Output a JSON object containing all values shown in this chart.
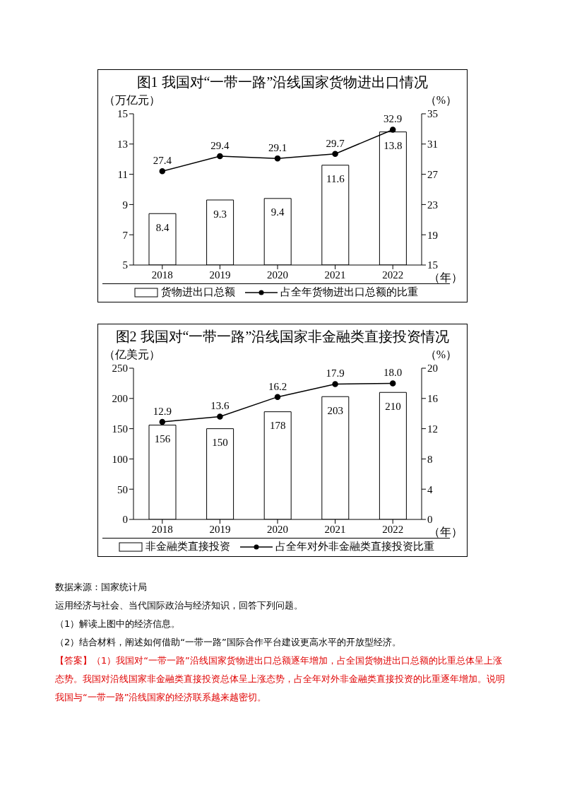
{
  "chart_data": [
    {
      "type": "bar",
      "title": "图1 我国对“一带一路”沿线国家货物进出口情况",
      "ylabel": "（万亿元）",
      "y2label": "（%）",
      "xlabel": "（年）",
      "categories": [
        "2018",
        "2019",
        "2020",
        "2021",
        "2022"
      ],
      "series": [
        {
          "name": "货物进出口总额",
          "color": "#ffffff",
          "values": [
            8.4,
            9.3,
            9.4,
            11.6,
            13.8
          ]
        },
        {
          "name": "占全年货物进出口总额的比重",
          "type": "line",
          "axis": "y2",
          "color": "#000000",
          "values": [
            27.4,
            29.4,
            29.1,
            29.7,
            32.9
          ]
        }
      ],
      "ylim": [
        5,
        15
      ],
      "yticks": [
        5,
        7,
        9,
        11,
        13,
        15
      ],
      "y2lim": [
        15,
        35
      ],
      "y2ticks": [
        15,
        19,
        23,
        27,
        31,
        35
      ],
      "data_labels": true,
      "legend": "bottom",
      "marker": "circle",
      "grid": false
    },
    {
      "type": "bar",
      "title": "图2 我国对“一带一路”沿线国家非金融类直接投资情况",
      "ylabel": "（亿美元）",
      "y2label": "（%）",
      "xlabel": "（年）",
      "categories": [
        "2018",
        "2019",
        "2020",
        "2021",
        "2022"
      ],
      "series": [
        {
          "name": "非金融类直接投资",
          "color": "#ffffff",
          "values": [
            156,
            150,
            178,
            203,
            210
          ],
          "value_labels": [
            "156",
            "150",
            "178",
            "203",
            "210"
          ]
        },
        {
          "name": "占全年对外非金融类直接投资比重",
          "type": "line",
          "axis": "y2",
          "color": "#000000",
          "values": [
            12.9,
            13.6,
            16.2,
            17.9,
            18.0
          ],
          "value_labels": [
            "12.9",
            "13.6",
            "16.2",
            "17.9",
            "18.0"
          ]
        }
      ],
      "ylim": [
        0,
        250
      ],
      "yticks": [
        0,
        50,
        100,
        150,
        200,
        250
      ],
      "y2lim": [
        0,
        20
      ],
      "y2ticks": [
        0,
        4,
        8,
        12,
        16,
        20
      ],
      "legend": "bottom",
      "marker": "circle",
      "grid": false,
      "annotations": [
        "数据来源：国家统计局",
        "运用经济与社会、当代国际政治与经济知识，回答下列问题。",
        "（1）解读上图中的经济信息。",
        "（2）结合材料，阐述如何借助“一带一路”国际合作平台建设更高水平的开放型经济。",
        "【答案】（1）我国对“一带一路”沿线国家货物进出口总额逐年增加，占全国货物进出口总额的比重总体呈上涨态势。我国对沿线国家非金融类直接投资总体呈上涨态势，占全年对外非金融类直接投资的比重逐年增加。说明我国与“一带一路”沿线国家的经济联系越来越密切。"
      ]
    }
  ]
}
